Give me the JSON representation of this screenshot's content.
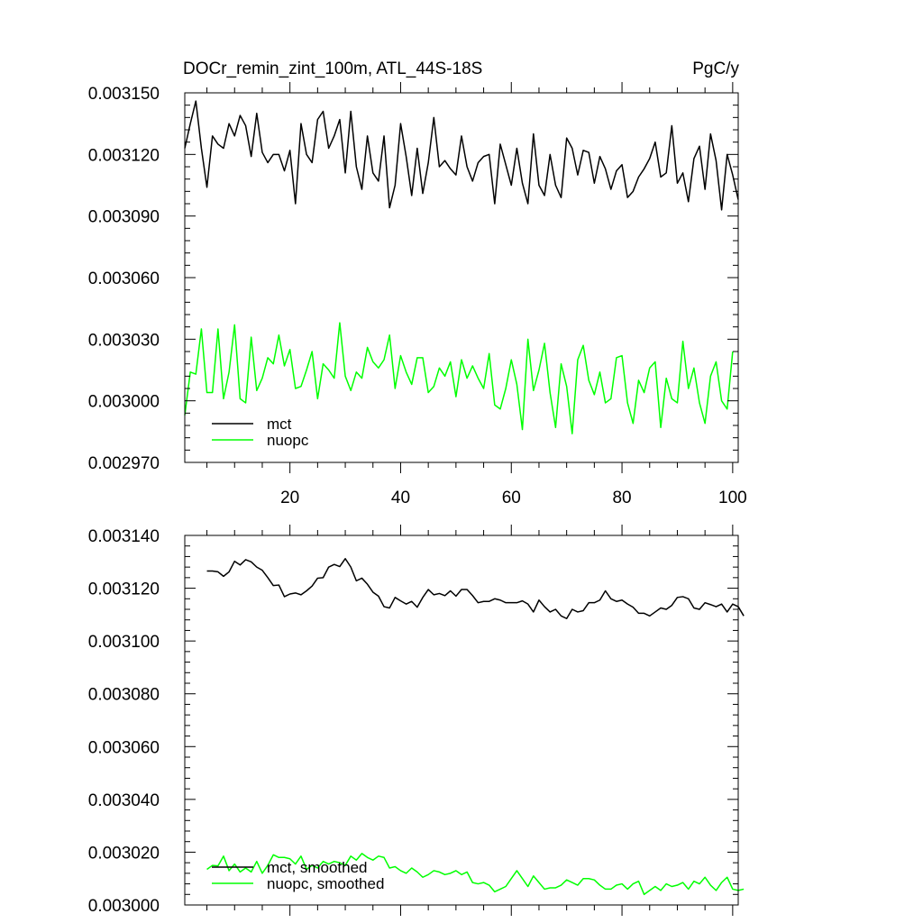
{
  "chart_data": [
    {
      "type": "line",
      "title": "DOCr_remin_zint_100m, ATL_44S-18S",
      "units": "PgC/y",
      "xlim": [
        1,
        101
      ],
      "ylim": [
        0.00297,
        0.00315
      ],
      "x_ticks": [
        20,
        40,
        60,
        80,
        100
      ],
      "x_tick_labels": [
        "20",
        "40",
        "60",
        "80",
        "100"
      ],
      "y_ticks": [
        0.00297,
        0.003,
        0.00303,
        0.00306,
        0.00309,
        0.00312,
        0.00315
      ],
      "y_tick_labels": [
        "0.002970",
        "0.003000",
        "0.003030",
        "0.003060",
        "0.003090",
        "0.003120",
        "0.003150"
      ],
      "legend_position": "bottom-left",
      "grid": false,
      "series": [
        {
          "name": "mct",
          "color": "#000000",
          "x_start": 1,
          "values": [
            0.003123,
            0.003135,
            0.003146,
            0.003123,
            0.003104,
            0.003129,
            0.003125,
            0.003123,
            0.003135,
            0.003129,
            0.003139,
            0.003134,
            0.003119,
            0.00314,
            0.003121,
            0.003116,
            0.00312,
            0.00312,
            0.003112,
            0.003122,
            0.003096,
            0.003135,
            0.00312,
            0.003116,
            0.003137,
            0.003141,
            0.003123,
            0.003129,
            0.003137,
            0.003111,
            0.003141,
            0.003114,
            0.003103,
            0.003129,
            0.003111,
            0.003107,
            0.003129,
            0.003094,
            0.003105,
            0.003135,
            0.003119,
            0.0031,
            0.003123,
            0.003101,
            0.003116,
            0.003138,
            0.003114,
            0.003117,
            0.003113,
            0.00311,
            0.003129,
            0.003114,
            0.003107,
            0.003116,
            0.003119,
            0.00312,
            0.003096,
            0.003125,
            0.003115,
            0.003105,
            0.003123,
            0.003106,
            0.003096,
            0.00313,
            0.003105,
            0.0031,
            0.00312,
            0.003105,
            0.003099,
            0.003128,
            0.003123,
            0.00311,
            0.003122,
            0.003121,
            0.003106,
            0.003119,
            0.003113,
            0.003103,
            0.003112,
            0.003115,
            0.003099,
            0.003102,
            0.003109,
            0.003113,
            0.003118,
            0.003126,
            0.003109,
            0.003111,
            0.003134,
            0.003106,
            0.003111,
            0.003097,
            0.003118,
            0.003124,
            0.003103,
            0.00313,
            0.003117,
            0.003093,
            0.00312,
            0.00311,
            0.003098
          ]
        },
        {
          "name": "nuopc",
          "color": "#00ff00",
          "x_start": 1,
          "values": [
            0.002993,
            0.003014,
            0.003013,
            0.003035,
            0.003004,
            0.003004,
            0.003035,
            0.003001,
            0.003014,
            0.003037,
            0.003001,
            0.002999,
            0.003031,
            0.003005,
            0.003011,
            0.003021,
            0.003018,
            0.003032,
            0.003017,
            0.003025,
            0.003006,
            0.003007,
            0.003015,
            0.003024,
            0.003001,
            0.003018,
            0.003015,
            0.003011,
            0.003038,
            0.003012,
            0.003005,
            0.003014,
            0.003011,
            0.003026,
            0.003019,
            0.003016,
            0.00302,
            0.003032,
            0.003006,
            0.003022,
            0.003014,
            0.003008,
            0.003021,
            0.003021,
            0.003004,
            0.003007,
            0.003016,
            0.003012,
            0.003019,
            0.003002,
            0.00302,
            0.003011,
            0.003017,
            0.003011,
            0.003006,
            0.003023,
            0.002998,
            0.002996,
            0.003006,
            0.00302,
            0.003008,
            0.002986,
            0.00303,
            0.003005,
            0.003015,
            0.003028,
            0.003004,
            0.002987,
            0.003018,
            0.003007,
            0.002984,
            0.00302,
            0.003027,
            0.00301,
            0.003003,
            0.003014,
            0.002999,
            0.003001,
            0.003021,
            0.003022,
            0.002999,
            0.002989,
            0.00301,
            0.003004,
            0.003016,
            0.003019,
            0.002987,
            0.003011,
            0.003001,
            0.002999,
            0.003029,
            0.003006,
            0.003016,
            0.002999,
            0.002989,
            0.003012,
            0.003019,
            0.003,
            0.002996,
            0.003024
          ]
        }
      ]
    },
    {
      "type": "line",
      "xlim": [
        1,
        101
      ],
      "ylim": [
        0.003,
        0.00314
      ],
      "x_ticks": [
        20,
        40,
        60,
        80,
        100
      ],
      "y_ticks": [
        0.003,
        0.00302,
        0.00304,
        0.00306,
        0.00308,
        0.0031,
        0.00312,
        0.00314
      ],
      "y_tick_labels": [
        "0.003000",
        "0.003020",
        "0.003040",
        "0.003060",
        "0.003080",
        "0.003100",
        "0.003120",
        "0.003140"
      ],
      "legend_position": "bottom-left",
      "grid": false,
      "series": [
        {
          "name": "mct, smoothed",
          "color": "#000000",
          "x_start": 5,
          "values": [
            0.0031265,
            0.0031265,
            0.0031262,
            0.0031245,
            0.0031262,
            0.0031302,
            0.0031288,
            0.0031308,
            0.00313,
            0.003128,
            0.0031268,
            0.003124,
            0.003121,
            0.0031212,
            0.0031168,
            0.0031178,
            0.0031182,
            0.0031175,
            0.003119,
            0.0031208,
            0.0031238,
            0.003124,
            0.003128,
            0.003129,
            0.0031282,
            0.0031312,
            0.003128,
            0.0031228,
            0.0031238,
            0.0031215,
            0.0031185,
            0.003117,
            0.003113,
            0.0031125,
            0.0031165,
            0.0031152,
            0.003114,
            0.003115,
            0.0031128,
            0.0031165,
            0.0031195,
            0.0031175,
            0.003118,
            0.0031172,
            0.003119,
            0.003117,
            0.0031195,
            0.0031195,
            0.0031172,
            0.0031145,
            0.003115,
            0.003115,
            0.003116,
            0.0031155,
            0.0031145,
            0.0031145,
            0.0031145,
            0.0031152,
            0.003114,
            0.003111,
            0.0031155,
            0.003113,
            0.003111,
            0.003112,
            0.0031095,
            0.0031085,
            0.003112,
            0.003111,
            0.0031115,
            0.0031145,
            0.0031145,
            0.0031155,
            0.003119,
            0.003116,
            0.003115,
            0.0031155,
            0.003114,
            0.0031128,
            0.0031105,
            0.0031105,
            0.0031095,
            0.003111,
            0.0031125,
            0.003112,
            0.0031135,
            0.0031165,
            0.0031168,
            0.003116,
            0.0031125,
            0.003112,
            0.0031145,
            0.0031138,
            0.003113,
            0.003114,
            0.003111,
            0.003114,
            0.003113,
            0.0031095
          ]
        },
        {
          "name": "nuopc, smoothed",
          "color": "#00ff00",
          "x_start": 5,
          "values": [
            0.0030135,
            0.003015,
            0.0030148,
            0.0030185,
            0.003013,
            0.0030155,
            0.0030125,
            0.003014,
            0.0030125,
            0.0030165,
            0.003012,
            0.003015,
            0.003019,
            0.003018,
            0.003018,
            0.0030175,
            0.0030155,
            0.0030185,
            0.0030135,
            0.003015,
            0.003014,
            0.0030165,
            0.0030155,
            0.0030165,
            0.003016,
            0.003015,
            0.0030185,
            0.003017,
            0.0030195,
            0.003018,
            0.003017,
            0.0030185,
            0.003018,
            0.003014,
            0.0030145,
            0.003013,
            0.003012,
            0.003014,
            0.0030125,
            0.0030105,
            0.0030115,
            0.003013,
            0.0030125,
            0.0030115,
            0.003012,
            0.003013,
            0.0030115,
            0.0030125,
            0.0030085,
            0.003008,
            0.0030085,
            0.0030075,
            0.003005,
            0.003006,
            0.003007,
            0.00301,
            0.003013,
            0.00301,
            0.003007,
            0.003011,
            0.0030085,
            0.003006,
            0.0030065,
            0.0030065,
            0.0030075,
            0.0030095,
            0.0030085,
            0.0030075,
            0.00301,
            0.00301,
            0.0030095,
            0.0030075,
            0.003006,
            0.003006,
            0.0030075,
            0.003008,
            0.003006,
            0.003008,
            0.003009,
            0.003004,
            0.0030055,
            0.003007,
            0.0030055,
            0.003008,
            0.003007,
            0.0030075,
            0.0030085,
            0.003006,
            0.003009,
            0.003008,
            0.0030105,
            0.0030075,
            0.0030055,
            0.0030085,
            0.0030105,
            0.003006,
            0.0030055,
            0.003006
          ]
        }
      ]
    }
  ]
}
